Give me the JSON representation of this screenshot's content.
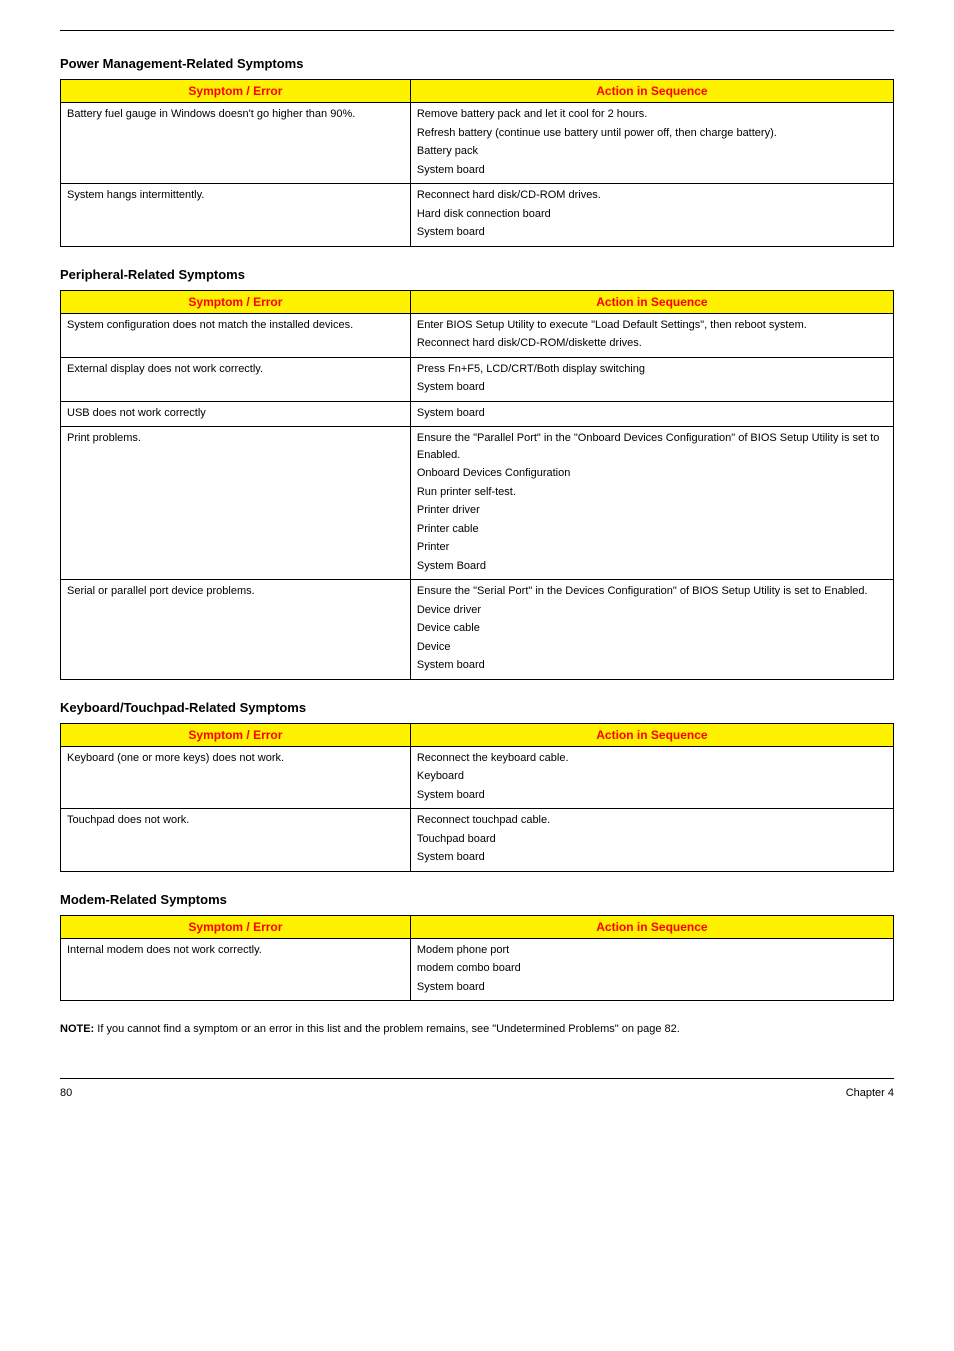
{
  "colors": {
    "header_bg": "#fff200",
    "header_text": "#ff0000",
    "border": "#000000",
    "body_text": "#000000",
    "page_bg": "#ffffff"
  },
  "typography": {
    "heading_fontsize": 13,
    "cell_fontsize": 11,
    "note_fontsize": 11,
    "footer_fontsize": 11
  },
  "column_headers": {
    "symptom": "Symptom / Error",
    "action": "Action in Sequence"
  },
  "sections": [
    {
      "heading": "Power Management-Related Symptoms",
      "rows": [
        {
          "symptom": "Battery fuel gauge in Windows doesn't go higher than 90%.",
          "actions": [
            "Remove battery pack and let it cool for 2 hours.",
            "Refresh battery (continue use battery until power off, then charge battery).",
            "Battery pack",
            "System board"
          ]
        },
        {
          "symptom": "System hangs intermittently.",
          "actions": [
            "Reconnect hard disk/CD-ROM drives.",
            "Hard disk connection board",
            "System board"
          ]
        }
      ]
    },
    {
      "heading": "Peripheral-Related Symptoms",
      "rows": [
        {
          "symptom": "System configuration does not match the installed devices.",
          "actions": [
            "Enter BIOS Setup Utility to execute \"Load Default Settings\", then reboot system.",
            "Reconnect hard disk/CD-ROM/diskette drives."
          ]
        },
        {
          "symptom": "External display does not work correctly.",
          "actions": [
            "Press Fn+F5, LCD/CRT/Both display switching",
            "System board"
          ]
        },
        {
          "symptom": "USB does not work correctly",
          "actions": [
            "System board"
          ]
        },
        {
          "symptom": "Print problems.",
          "actions": [
            "Ensure the \"Parallel Port\" in the \"Onboard Devices Configuration\" of BIOS Setup Utility is set to Enabled.",
            "Onboard Devices Configuration",
            "Run printer self-test.",
            "Printer driver",
            "Printer cable",
            "Printer",
            "System Board"
          ]
        },
        {
          "symptom": "Serial or parallel port device problems.",
          "actions": [
            "Ensure the \"Serial Port\" in the Devices Configuration\" of BIOS Setup Utility is set to Enabled.",
            "Device driver",
            "Device cable",
            "Device",
            "System board"
          ]
        }
      ]
    },
    {
      "heading": "Keyboard/Touchpad-Related Symptoms",
      "rows": [
        {
          "symptom": "Keyboard (one or more keys) does not work.",
          "actions": [
            "Reconnect the keyboard cable.",
            "Keyboard",
            "System board"
          ]
        },
        {
          "symptom": "Touchpad does not work.",
          "actions": [
            "Reconnect touchpad cable.",
            "Touchpad board",
            "System board"
          ]
        }
      ]
    },
    {
      "heading": "Modem-Related Symptoms",
      "rows": [
        {
          "symptom": "Internal modem does not work correctly.",
          "actions": [
            "Modem phone port",
            "modem combo board",
            "System board"
          ]
        }
      ]
    }
  ],
  "note": {
    "label": "NOTE: ",
    "text": "If you cannot find a symptom or an error in this list and the problem remains, see \"Undetermined Problems\" on page 82."
  },
  "footer": {
    "page": "80",
    "chapter": "Chapter 4"
  }
}
